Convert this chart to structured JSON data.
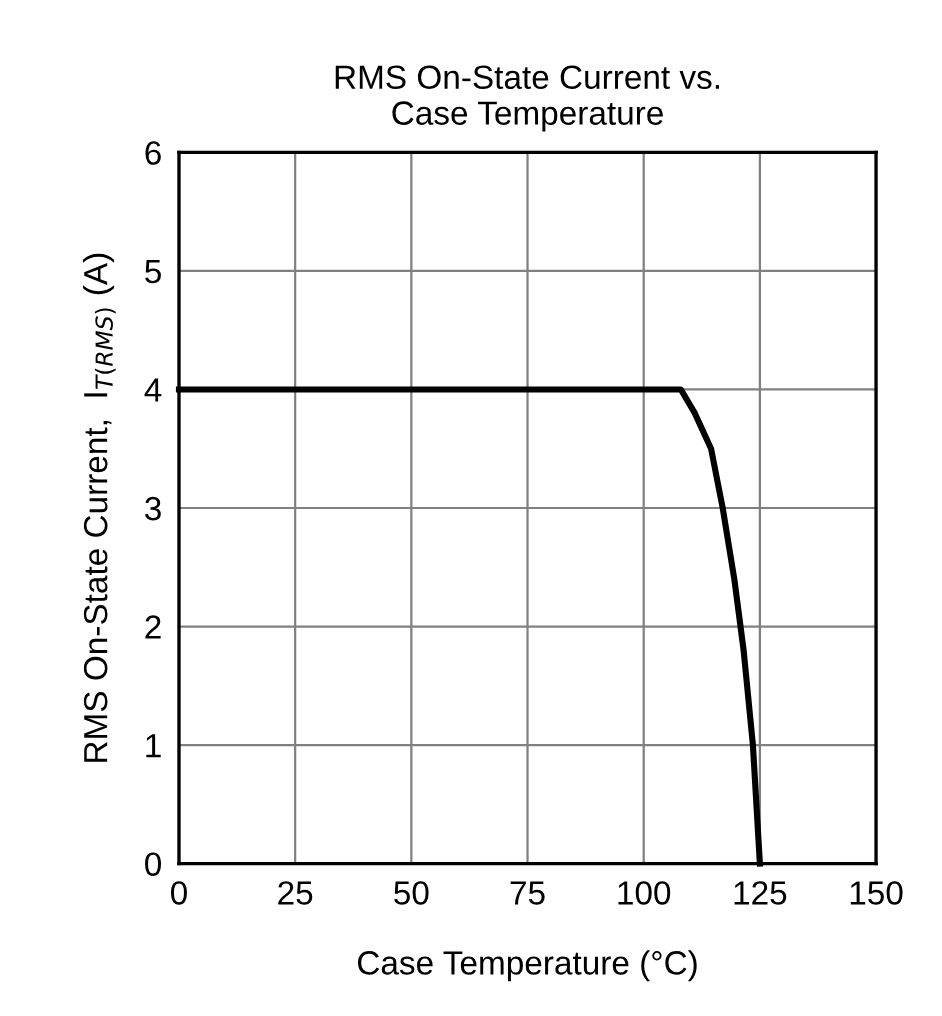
{
  "chart_data": {
    "type": "line",
    "title": "RMS On-State Current vs.\nCase Temperature",
    "xlabel": "Case Temperature (°C)",
    "ylabel": "RMS On-State Current,  I$_{T(RMS)}$ (A)",
    "x": [
      0,
      108,
      111,
      114.5,
      117,
      119.5,
      121.5,
      123.5,
      125
    ],
    "series": [
      {
        "color": "#000000",
        "values": [
          4,
          4,
          3.8,
          3.5,
          3.0,
          2.4,
          1.8,
          1.0,
          0
        ]
      }
    ],
    "xlim": [
      0,
      150
    ],
    "xticks": [
      0,
      25,
      50,
      75,
      100,
      125,
      150
    ],
    "ylim": [
      0,
      6
    ],
    "yticks": [
      0,
      1,
      2,
      3,
      4,
      5,
      6
    ],
    "grid": true,
    "marker": "none",
    "line_style": "solid"
  }
}
